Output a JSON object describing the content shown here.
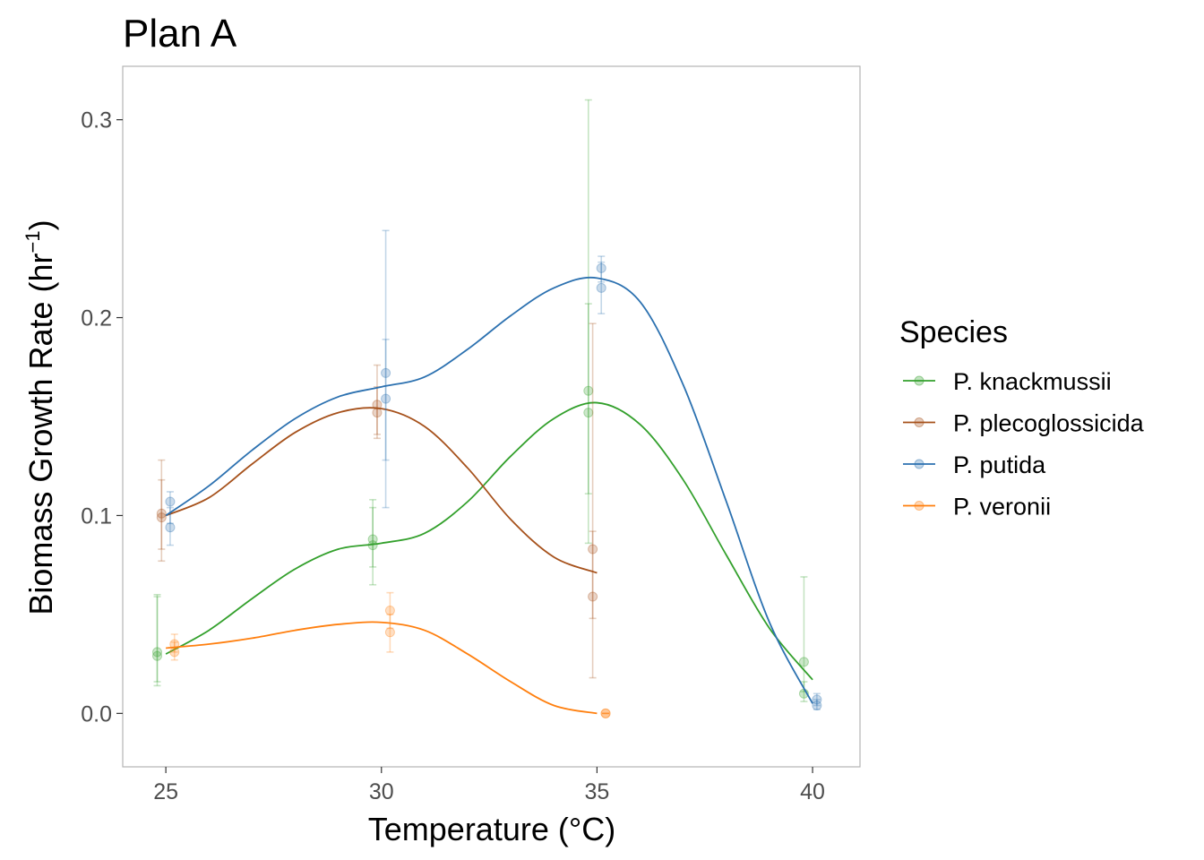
{
  "chart_data": {
    "type": "scatter",
    "title": "Plan A",
    "xlabel": "Temperature (°C)",
    "ylabel": {
      "base": "Biomass Growth Rate (hr",
      "superscript": "−1",
      "close": ")"
    },
    "xlim": [
      24,
      41.1
    ],
    "ylim": [
      -0.027,
      0.327
    ],
    "x_ticks": [
      25,
      30,
      35,
      40
    ],
    "x_tick_labels": [
      "25",
      "30",
      "35",
      "40"
    ],
    "y_ticks": [
      0.0,
      0.1,
      0.2,
      0.3
    ],
    "y_tick_labels": [
      "0.0",
      "0.1",
      "0.2",
      "0.3"
    ],
    "grid": false,
    "legend_position": "right",
    "legend_title": "Species",
    "series": [
      {
        "name": "P. knackmussii",
        "color": "#33a02c",
        "points": [
          {
            "x": 24.8,
            "y": 0.031,
            "lo": 0.016,
            "hi": 0.06
          },
          {
            "x": 24.8,
            "y": 0.029,
            "lo": 0.014,
            "hi": 0.059
          },
          {
            "x": 29.8,
            "y": 0.088,
            "lo": 0.074,
            "hi": 0.108
          },
          {
            "x": 29.8,
            "y": 0.085,
            "lo": 0.065,
            "hi": 0.104
          },
          {
            "x": 34.8,
            "y": 0.163,
            "lo": 0.086,
            "hi": 0.31
          },
          {
            "x": 34.8,
            "y": 0.152,
            "lo": 0.111,
            "hi": 0.207
          },
          {
            "x": 39.8,
            "y": 0.026,
            "lo": 0.011,
            "hi": 0.069
          },
          {
            "x": 39.8,
            "y": 0.01,
            "lo": 0.006,
            "hi": 0.016
          }
        ],
        "curve": [
          [
            25,
            0.03
          ],
          [
            26,
            0.042
          ],
          [
            27,
            0.058
          ],
          [
            28,
            0.073
          ],
          [
            29,
            0.083
          ],
          [
            30,
            0.086
          ],
          [
            31,
            0.091
          ],
          [
            32,
            0.107
          ],
          [
            33,
            0.13
          ],
          [
            34,
            0.149
          ],
          [
            35,
            0.157
          ],
          [
            36,
            0.146
          ],
          [
            37,
            0.118
          ],
          [
            38,
            0.08
          ],
          [
            39,
            0.043
          ],
          [
            40,
            0.017
          ]
        ]
      },
      {
        "name": "P. plecoglossicida",
        "color": "#a6511b",
        "points": [
          {
            "x": 24.9,
            "y": 0.101,
            "lo": 0.077,
            "hi": 0.128
          },
          {
            "x": 24.9,
            "y": 0.099,
            "lo": 0.083,
            "hi": 0.118
          },
          {
            "x": 29.9,
            "y": 0.156,
            "lo": 0.141,
            "hi": 0.176
          },
          {
            "x": 29.9,
            "y": 0.152,
            "lo": 0.139,
            "hi": 0.165
          },
          {
            "x": 34.9,
            "y": 0.083,
            "lo": 0.018,
            "hi": 0.197
          },
          {
            "x": 34.9,
            "y": 0.059,
            "lo": 0.048,
            "hi": 0.092
          }
        ],
        "curve": [
          [
            25,
            0.1
          ],
          [
            26,
            0.109
          ],
          [
            27,
            0.126
          ],
          [
            28,
            0.142
          ],
          [
            29,
            0.152
          ],
          [
            30,
            0.154
          ],
          [
            31,
            0.145
          ],
          [
            32,
            0.124
          ],
          [
            33,
            0.098
          ],
          [
            34,
            0.079
          ],
          [
            35,
            0.071
          ]
        ]
      },
      {
        "name": "P. putida",
        "color": "#2c71b0",
        "points": [
          {
            "x": 25.1,
            "y": 0.107,
            "lo": 0.096,
            "hi": 0.112
          },
          {
            "x": 25.1,
            "y": 0.094,
            "lo": 0.085,
            "hi": 0.104
          },
          {
            "x": 30.1,
            "y": 0.172,
            "lo": 0.104,
            "hi": 0.244
          },
          {
            "x": 30.1,
            "y": 0.159,
            "lo": 0.128,
            "hi": 0.189
          },
          {
            "x": 35.1,
            "y": 0.225,
            "lo": 0.218,
            "hi": 0.231
          },
          {
            "x": 35.1,
            "y": 0.215,
            "lo": 0.202,
            "hi": 0.228
          },
          {
            "x": 40.1,
            "y": 0.007,
            "lo": 0.004,
            "hi": 0.01
          },
          {
            "x": 40.1,
            "y": 0.004,
            "lo": 0.002,
            "hi": 0.007
          }
        ],
        "curve": [
          [
            25,
            0.1
          ],
          [
            26,
            0.115
          ],
          [
            27,
            0.133
          ],
          [
            28,
            0.149
          ],
          [
            29,
            0.16
          ],
          [
            30,
            0.165
          ],
          [
            31,
            0.17
          ],
          [
            32,
            0.184
          ],
          [
            33,
            0.201
          ],
          [
            34,
            0.215
          ],
          [
            35,
            0.22
          ],
          [
            36,
            0.208
          ],
          [
            37,
            0.166
          ],
          [
            38,
            0.107
          ],
          [
            39,
            0.046
          ],
          [
            40,
            0.005
          ]
        ]
      },
      {
        "name": "P. veronii",
        "color": "#ff7f0e",
        "points": [
          {
            "x": 25.2,
            "y": 0.035,
            "lo": 0.031,
            "hi": 0.04
          },
          {
            "x": 25.2,
            "y": 0.031,
            "lo": 0.027,
            "hi": 0.036
          },
          {
            "x": 30.2,
            "y": 0.052,
            "lo": 0.043,
            "hi": 0.061
          },
          {
            "x": 30.2,
            "y": 0.041,
            "lo": 0.031,
            "hi": 0.05
          },
          {
            "x": 35.2,
            "y": 0.0,
            "lo": 0.0,
            "hi": 0.0
          },
          {
            "x": 35.2,
            "y": 0.0,
            "lo": 0.0,
            "hi": 0.0
          }
        ],
        "curve": [
          [
            25,
            0.033
          ],
          [
            26,
            0.035
          ],
          [
            27,
            0.038
          ],
          [
            28,
            0.042
          ],
          [
            29,
            0.045
          ],
          [
            30,
            0.046
          ],
          [
            31,
            0.042
          ],
          [
            32,
            0.03
          ],
          [
            33,
            0.016
          ],
          [
            34,
            0.004
          ],
          [
            35,
            0.0
          ]
        ]
      }
    ]
  }
}
